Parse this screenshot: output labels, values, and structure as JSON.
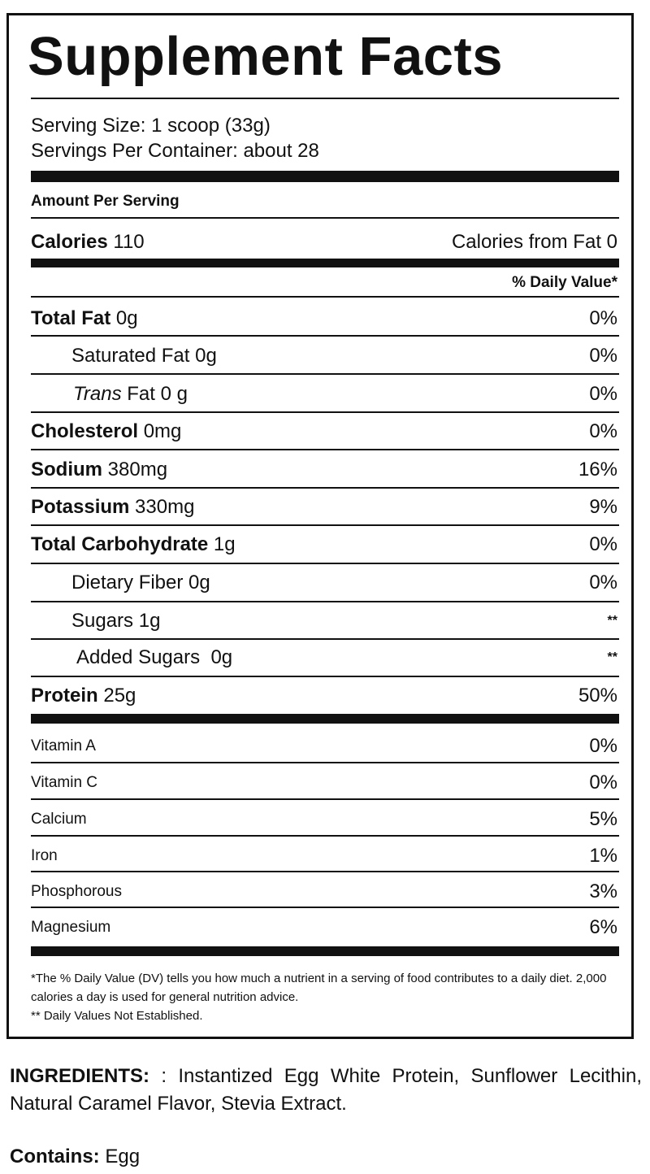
{
  "title": "Supplement Facts",
  "serving_size": "Serving Size: 1 scoop (33g)",
  "servings_per_container": "Servings Per Container: about 28",
  "amount_per_serving": "Amount Per Serving",
  "calories": {
    "label": "Calories",
    "value": "110",
    "from_fat": "Calories from Fat 0"
  },
  "daily_value_header": "% Daily Value*",
  "nutrients": [
    {
      "name": "Total Fat",
      "amount": "0g",
      "dv": "0%"
    },
    {
      "name": "Saturated Fat",
      "amount": "0g",
      "dv": "0%"
    },
    {
      "prefix": "Trans",
      "name": "Fat",
      "amount": "0 g",
      "dv": "0%"
    },
    {
      "name": "Cholesterol",
      "amount": "0mg",
      "dv": "0%"
    },
    {
      "name": "Sodium",
      "amount": "380mg",
      "dv": "16%"
    },
    {
      "name": "Potassium",
      "amount": "330mg",
      "dv": "9%"
    },
    {
      "name": "Total Carbohydrate",
      "amount": "1g",
      "dv": "0%"
    },
    {
      "name": "Dietary Fiber",
      "amount": "0g",
      "dv": "0%"
    },
    {
      "name": "Sugars",
      "amount": "1g",
      "dv": "**"
    },
    {
      "name": "Added Sugars",
      "amount": "0g",
      "dv": "**"
    },
    {
      "name": "Protein",
      "amount": "25g",
      "dv": "50%"
    }
  ],
  "vitamins": [
    {
      "name": "Vitamin A",
      "dv": "0%"
    },
    {
      "name": "Vitamin C",
      "dv": "0%"
    },
    {
      "name": "Calcium",
      "dv": "5%"
    },
    {
      "name": "Iron",
      "dv": "1%"
    },
    {
      "name": "Phosphorous",
      "dv": "3%"
    },
    {
      "name": "Magnesium",
      "dv": "6%"
    }
  ],
  "footnotes": [
    "*The % Daily Value (DV) tells you how much a nutrient in a serving of food contributes to a daily diet. 2,000 calories a day is used for general nutrition advice.",
    "** Daily Values Not Established."
  ],
  "ingredients": {
    "label": "INGREDIENTS:",
    "text": ": Instantized Egg White Protein, Sunflower Lecithin, Natural Caramel Flavor, Stevia Extract."
  },
  "contains": {
    "label": "Contains:",
    "text": "Egg"
  }
}
